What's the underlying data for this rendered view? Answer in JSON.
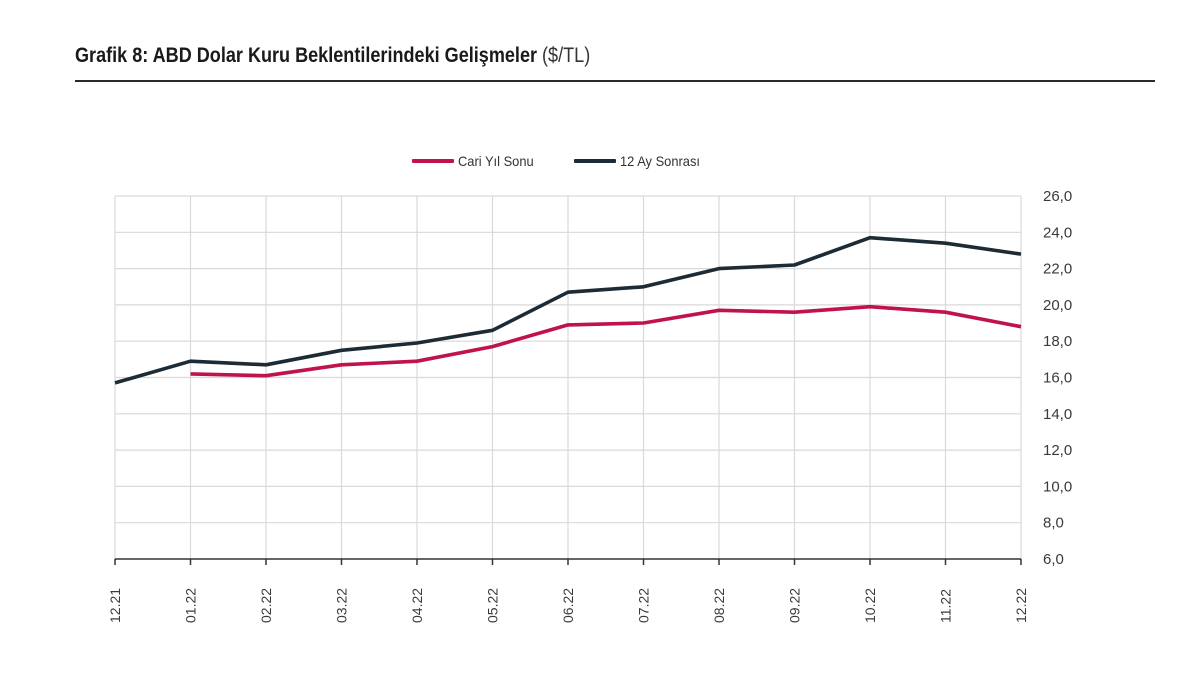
{
  "header": {
    "title_bold": "Grafik 8: ABD Dolar Kuru Beklentilerindeki Gelişmeler",
    "title_unit": "($/TL)"
  },
  "legend": {
    "items": [
      {
        "label": "Cari Yıl Sonu",
        "color": "#c0134a"
      },
      {
        "label": "12 Ay Sonrası",
        "color": "#1c2b36"
      }
    ]
  },
  "chart_data": {
    "type": "line",
    "title": "Grafik 8: ABD Dolar Kuru Beklentilerindeki Gelişmeler ($/TL)",
    "xlabel": "",
    "ylabel": "$/TL",
    "ylim": [
      6.0,
      26.0
    ],
    "yticks": [
      "6,0",
      "8,0",
      "10,0",
      "12,0",
      "14,0",
      "16,0",
      "18,0",
      "20,0",
      "22,0",
      "24,0",
      "26,0"
    ],
    "y_axis_position": "right",
    "grid": true,
    "legend_position": "top",
    "categories": [
      "12.21",
      "01.22",
      "02.22",
      "03.22",
      "04.22",
      "05.22",
      "06.22",
      "07.22",
      "08.22",
      "09.22",
      "10.22",
      "11.22",
      "12.22"
    ],
    "series": [
      {
        "name": "Cari Yıl Sonu",
        "color": "#c0134a",
        "values": [
          null,
          16.2,
          16.1,
          16.7,
          16.9,
          17.7,
          18.9,
          19.0,
          19.7,
          19.6,
          19.9,
          19.6,
          18.8
        ]
      },
      {
        "name": "12 Ay Sonrası",
        "color": "#1c2b36",
        "values": [
          15.7,
          16.9,
          16.7,
          17.5,
          17.9,
          18.6,
          20.7,
          21.0,
          22.0,
          22.2,
          23.7,
          23.4,
          22.8
        ]
      }
    ]
  }
}
